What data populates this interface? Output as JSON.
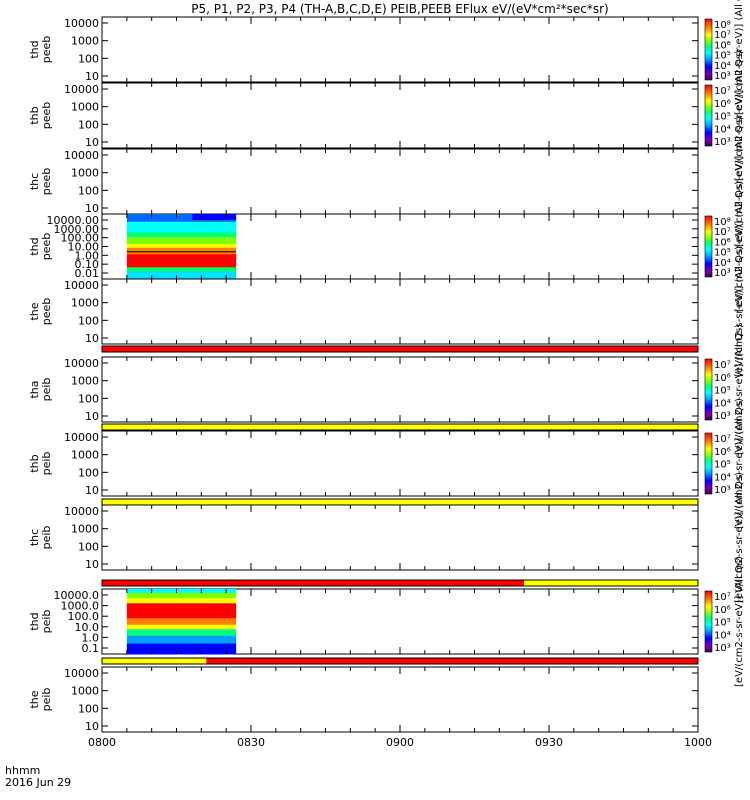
{
  "chart_data": {
    "type": "heatmap",
    "title": "P5, P1, P2, P3, P4 (TH-A,B,C,D,E) PEIB,PEEB EFlux eV/(eV*cm²*sec*sr)",
    "x": {
      "ticks": [
        "0800",
        "0830",
        "0900",
        "0930",
        "1000"
      ],
      "range": [
        "08:00",
        "10:00"
      ],
      "corner_label_1": "hhmm",
      "corner_label_2": "2016 Jun 29"
    },
    "panels": [
      {
        "ylabel": [
          "thd",
          "peeb"
        ],
        "yticks": [
          "10000",
          "1000",
          "100",
          "10"
        ],
        "colorbar": true,
        "cbticks": [
          "10⁸",
          "10⁷",
          "10⁶",
          "10⁵",
          "10⁴",
          "10³"
        ],
        "cblabel": "[eV/(cm2-s-sr-eV)] (All Qs)",
        "data": false
      },
      {
        "ylabel": [
          "thb",
          "peeb"
        ],
        "yticks": [
          "10000",
          "1000",
          "100",
          "10"
        ],
        "colorbar": true,
        "cbticks": [
          "10⁷",
          "10⁶",
          "10⁵",
          "10⁴",
          "10³"
        ],
        "cblabel": "[eV/(cm2-s-sr-eV)] (All Qs)",
        "data": false
      },
      {
        "ylabel": [
          "thc",
          "peeb"
        ],
        "yticks": [
          "10000",
          "1000",
          "100",
          "10"
        ],
        "colorbar": false,
        "cblabel": "[eV/(cm2-s-sr-eV)] (All Qs)",
        "data": false
      },
      {
        "ylabel": [
          "thd",
          "peeb"
        ],
        "yticks": [
          "10000.00",
          "1000.00",
          "100.00",
          "10.00",
          "1.00",
          "0.10",
          "0.01"
        ],
        "colorbar": true,
        "cbticks": [
          "10⁸",
          "10⁷",
          "10⁶",
          "10⁵",
          "10⁴",
          "10³"
        ],
        "cblabel": "[eV/(cm2-s-sr-eV)] (All Qs)",
        "data": true,
        "data_start": "08:05",
        "data_end": "08:27"
      },
      {
        "ylabel": [
          "the",
          "peeb"
        ],
        "yticks": [
          "10000",
          "1000",
          "100",
          "10"
        ],
        "colorbar": false,
        "cblabel": "[eV/(cm2-s-sr-eV)] (All Qs)",
        "data": false
      },
      {
        "ylabel": [
          "tha",
          "peib"
        ],
        "yticks": [
          "10000",
          "1000",
          "100",
          "10"
        ],
        "colorbar": true,
        "cbticks": [
          "10⁷",
          "10⁶",
          "10⁵",
          "10⁴",
          "10³"
        ],
        "cblabel": "[eV/(cm2-s-sr-eV)] (All Qs)",
        "data": false
      },
      {
        "ylabel": [
          "thb",
          "peib"
        ],
        "yticks": [
          "10000",
          "1000",
          "100",
          "10"
        ],
        "colorbar": true,
        "cbticks": [
          "10⁷",
          "10⁶",
          "10⁵",
          "10⁴",
          "10³"
        ],
        "cblabel": "[eV/(cm2-s-sr-eV)] (All Qs)",
        "data": false
      },
      {
        "ylabel": [
          "thc",
          "peib"
        ],
        "yticks": [
          "10000",
          "1000",
          "100",
          "10"
        ],
        "colorbar": false,
        "cblabel": "[eV/(cm2-s-sr-eV)] (All Qs)",
        "data": false
      },
      {
        "ylabel": [
          "thd",
          "peib"
        ],
        "yticks": [
          "10000.0",
          "1000.0",
          "100.0",
          "10.0",
          "1.0",
          "0.1"
        ],
        "colorbar": true,
        "cbticks": [
          "10⁷",
          "10⁶",
          "10⁵",
          "10⁴",
          "10³"
        ],
        "cblabel": "[eV/(cm2-s-sr-eV)] (All Qs)",
        "data": true,
        "data_start": "08:05",
        "data_end": "08:27"
      },
      {
        "ylabel": [
          "the",
          "peib"
        ],
        "yticks": [
          "10000",
          "1000",
          "100",
          "10"
        ],
        "colorbar": false,
        "cblabel": "",
        "data": false
      }
    ],
    "status_bars": [
      {
        "after_panel": 5,
        "segments": [
          {
            "from": "08:00",
            "to": "10:00",
            "color": "#ff0000"
          }
        ]
      },
      {
        "after_panel": 6,
        "segments": [
          {
            "from": "08:00",
            "to": "10:00",
            "color": "#ffff00"
          }
        ]
      },
      {
        "after_panel": 7,
        "segments": [
          {
            "from": "08:00",
            "to": "10:00",
            "color": "#ffff00"
          }
        ]
      },
      {
        "after_panel": 8,
        "segments": [
          {
            "from": "08:00",
            "to": "09:25",
            "color": "#ff0000"
          },
          {
            "from": "09:25",
            "to": "10:00",
            "color": "#ffff00"
          }
        ]
      },
      {
        "after_panel": 9,
        "segments": [
          {
            "from": "08:00",
            "to": "08:21",
            "color": "#ffff00"
          },
          {
            "from": "08:21",
            "to": "10:00",
            "color": "#ff0000"
          }
        ]
      }
    ],
    "colors": {
      "colorbar_stops": [
        "#3a004f",
        "#7a00b0",
        "#0000ff",
        "#00a0ff",
        "#00ffff",
        "#00ff80",
        "#80ff00",
        "#ffff00",
        "#ff8000",
        "#ff0000"
      ]
    }
  }
}
